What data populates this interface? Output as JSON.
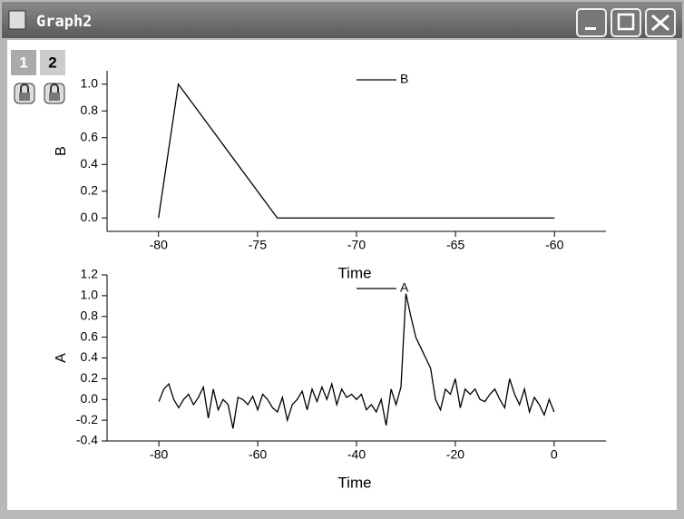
{
  "window": {
    "title": "Graph2"
  },
  "layers": [
    "1",
    "2"
  ],
  "chart_data": [
    {
      "type": "line",
      "xlabel": "Time",
      "ylabel": "B",
      "series": [
        {
          "name": "B",
          "color": "#000000",
          "x": [
            -80,
            -79,
            -74,
            -60
          ],
          "values": [
            0,
            1,
            0,
            0
          ]
        }
      ],
      "xlim": [
        -82.6,
        -57.4
      ],
      "xticks": [
        -80,
        -75,
        -70,
        -65,
        -60
      ],
      "ylim": [
        -0.1,
        1.1
      ],
      "yticks": [
        {
          "value": 0,
          "label": "0.0"
        },
        0.2,
        0.4,
        0.6,
        0.8,
        {
          "value": 1,
          "label": "1.0"
        }
      ]
    },
    {
      "type": "line",
      "xlabel": "Time",
      "ylabel": "A",
      "series": [
        {
          "name": "A",
          "color": "#000000",
          "x": [
            -80,
            -79,
            -78,
            -77,
            -76,
            -75,
            -74,
            -73,
            -72,
            -71,
            -70,
            -69,
            -68,
            -67,
            -66,
            -65,
            -64,
            -63,
            -62,
            -61,
            -60,
            -59,
            -58,
            -57,
            -56,
            -55,
            -54,
            -53,
            -52,
            -51,
            -50,
            -49,
            -48,
            -47,
            -46,
            -45,
            -44,
            -43,
            -42,
            -41,
            -40,
            -39,
            -38,
            -37,
            -36,
            -35,
            -34,
            -33,
            -32,
            -31,
            -30,
            -29,
            -28,
            -27,
            -26,
            -25,
            -24,
            -23,
            -22,
            -21,
            -20,
            -19,
            -18,
            -17,
            -16,
            -15,
            -14,
            -13,
            -12,
            -11,
            -10,
            -9,
            -8,
            -7,
            -6,
            -5,
            -4,
            -3,
            -2,
            -1,
            0
          ],
          "values": [
            -0.02,
            0.1,
            0.15,
            0.0,
            -0.08,
            0.0,
            0.05,
            -0.05,
            0.02,
            0.12,
            -0.18,
            0.1,
            -0.1,
            0.0,
            -0.05,
            -0.28,
            0.02,
            0.0,
            -0.05,
            0.03,
            -0.1,
            0.05,
            0.0,
            -0.08,
            -0.12,
            0.02,
            -0.2,
            -0.05,
            0.0,
            0.08,
            -0.1,
            0.1,
            -0.02,
            0.12,
            0.0,
            0.15,
            -0.05,
            0.1,
            0.02,
            0.05,
            0.0,
            0.05,
            -0.1,
            -0.05,
            -0.12,
            0.0,
            -0.25,
            0.1,
            -0.05,
            0.12,
            1.02,
            0.8,
            0.6,
            0.5,
            0.4,
            0.3,
            0.0,
            -0.1,
            0.1,
            0.05,
            0.2,
            -0.08,
            0.1,
            0.05,
            0.1,
            0.0,
            -0.02,
            0.05,
            0.1,
            0.0,
            -0.08,
            0.2,
            0.05,
            -0.05,
            0.1,
            -0.12,
            0.02,
            -0.05,
            -0.15,
            0.0,
            -0.12
          ]
        }
      ],
      "xlim": [
        -90.5,
        10.5
      ],
      "xticks": [
        -80,
        -60,
        -40,
        -20,
        0
      ],
      "ylim": [
        -0.4,
        1.2
      ],
      "yticks": [
        -0.4,
        -0.2,
        {
          "value": 0,
          "label": "0.0"
        },
        0.2,
        0.4,
        0.6,
        0.8,
        {
          "value": 1,
          "label": "1.0"
        },
        1.2
      ]
    }
  ]
}
